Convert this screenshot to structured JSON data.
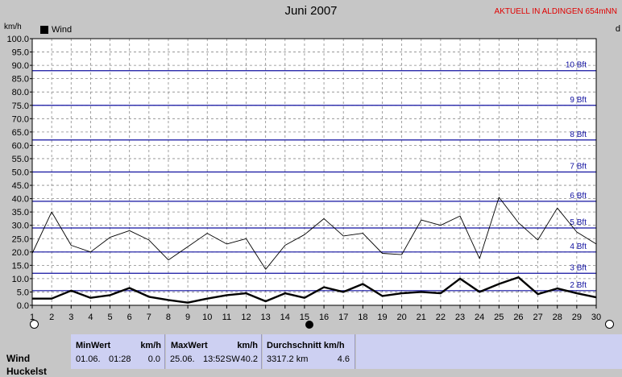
{
  "chart_data": {
    "type": "line",
    "title": "Juni 2007",
    "station_label": "AKTUELL IN ALDINGEN 654mNN",
    "ylabel": "km/h",
    "ylabel_right": "d",
    "ylim": [
      0,
      100
    ],
    "yticks": [
      "0.0",
      "5.0",
      "10.0",
      "15.0",
      "20.0",
      "25.0",
      "30.0",
      "35.0",
      "40.0",
      "45.0",
      "50.0",
      "55.0",
      "60.0",
      "65.0",
      "70.0",
      "75.0",
      "80.0",
      "85.0",
      "90.0",
      "95.0",
      "100.0"
    ],
    "x": [
      1,
      2,
      3,
      4,
      5,
      6,
      7,
      8,
      9,
      10,
      11,
      12,
      13,
      14,
      15,
      16,
      17,
      18,
      19,
      20,
      21,
      22,
      23,
      24,
      25,
      26,
      27,
      28,
      29,
      30
    ],
    "legend": [
      "Wind"
    ],
    "grid": true,
    "beaufort_lines": [
      {
        "label": "2 Bft",
        "value": 5.5
      },
      {
        "label": "3 Bft",
        "value": 12.0
      },
      {
        "label": "4 Bft",
        "value": 20.0
      },
      {
        "label": "5 Bft",
        "value": 29.0
      },
      {
        "label": "6 Bft",
        "value": 39.0
      },
      {
        "label": "7 Bft",
        "value": 50.0
      },
      {
        "label": "8 Bft",
        "value": 62.0
      },
      {
        "label": "9 Bft",
        "value": 75.0
      },
      {
        "label": "10 Bft",
        "value": 88.0
      }
    ],
    "series": [
      {
        "name": "Wind",
        "values": [
          2.5,
          2.5,
          5.5,
          2.8,
          3.8,
          6.5,
          3.2,
          2.0,
          1.0,
          2.5,
          3.8,
          4.5,
          1.5,
          4.5,
          2.8,
          6.8,
          5.0,
          8.0,
          3.5,
          4.5,
          5.0,
          4.5,
          10.0,
          5.0,
          8.0,
          10.5,
          4.2,
          6.3,
          4.5,
          3.0
        ]
      },
      {
        "values": [
          19.5,
          35.0,
          22.5,
          20.0,
          25.5,
          28.0,
          24.5,
          17.0,
          22.0,
          27.0,
          23.0,
          25.0,
          13.5,
          22.5,
          26.5,
          32.5,
          26.0,
          27.0,
          19.5,
          19.0,
          32.0,
          30.0,
          33.5,
          17.5,
          40.5,
          31.0,
          24.5,
          36.5,
          27.5,
          23.0
        ]
      }
    ]
  },
  "stats": {
    "row1_label": "Wind",
    "row2_label": "Huckelst",
    "min_header": "MinWert",
    "min_unit": "km/h",
    "min_date": "01.06.",
    "min_time": "01:28",
    "min_value": "0.0",
    "max_header": "MaxWert",
    "max_unit": "km/h",
    "max_date": "25.06.",
    "max_time": "13:52",
    "max_dir": "SW",
    "max_value": "40.2",
    "avg_header": "Durchschnitt km/h",
    "avg_distance": "3317.2 km",
    "avg_value": "4.6"
  }
}
